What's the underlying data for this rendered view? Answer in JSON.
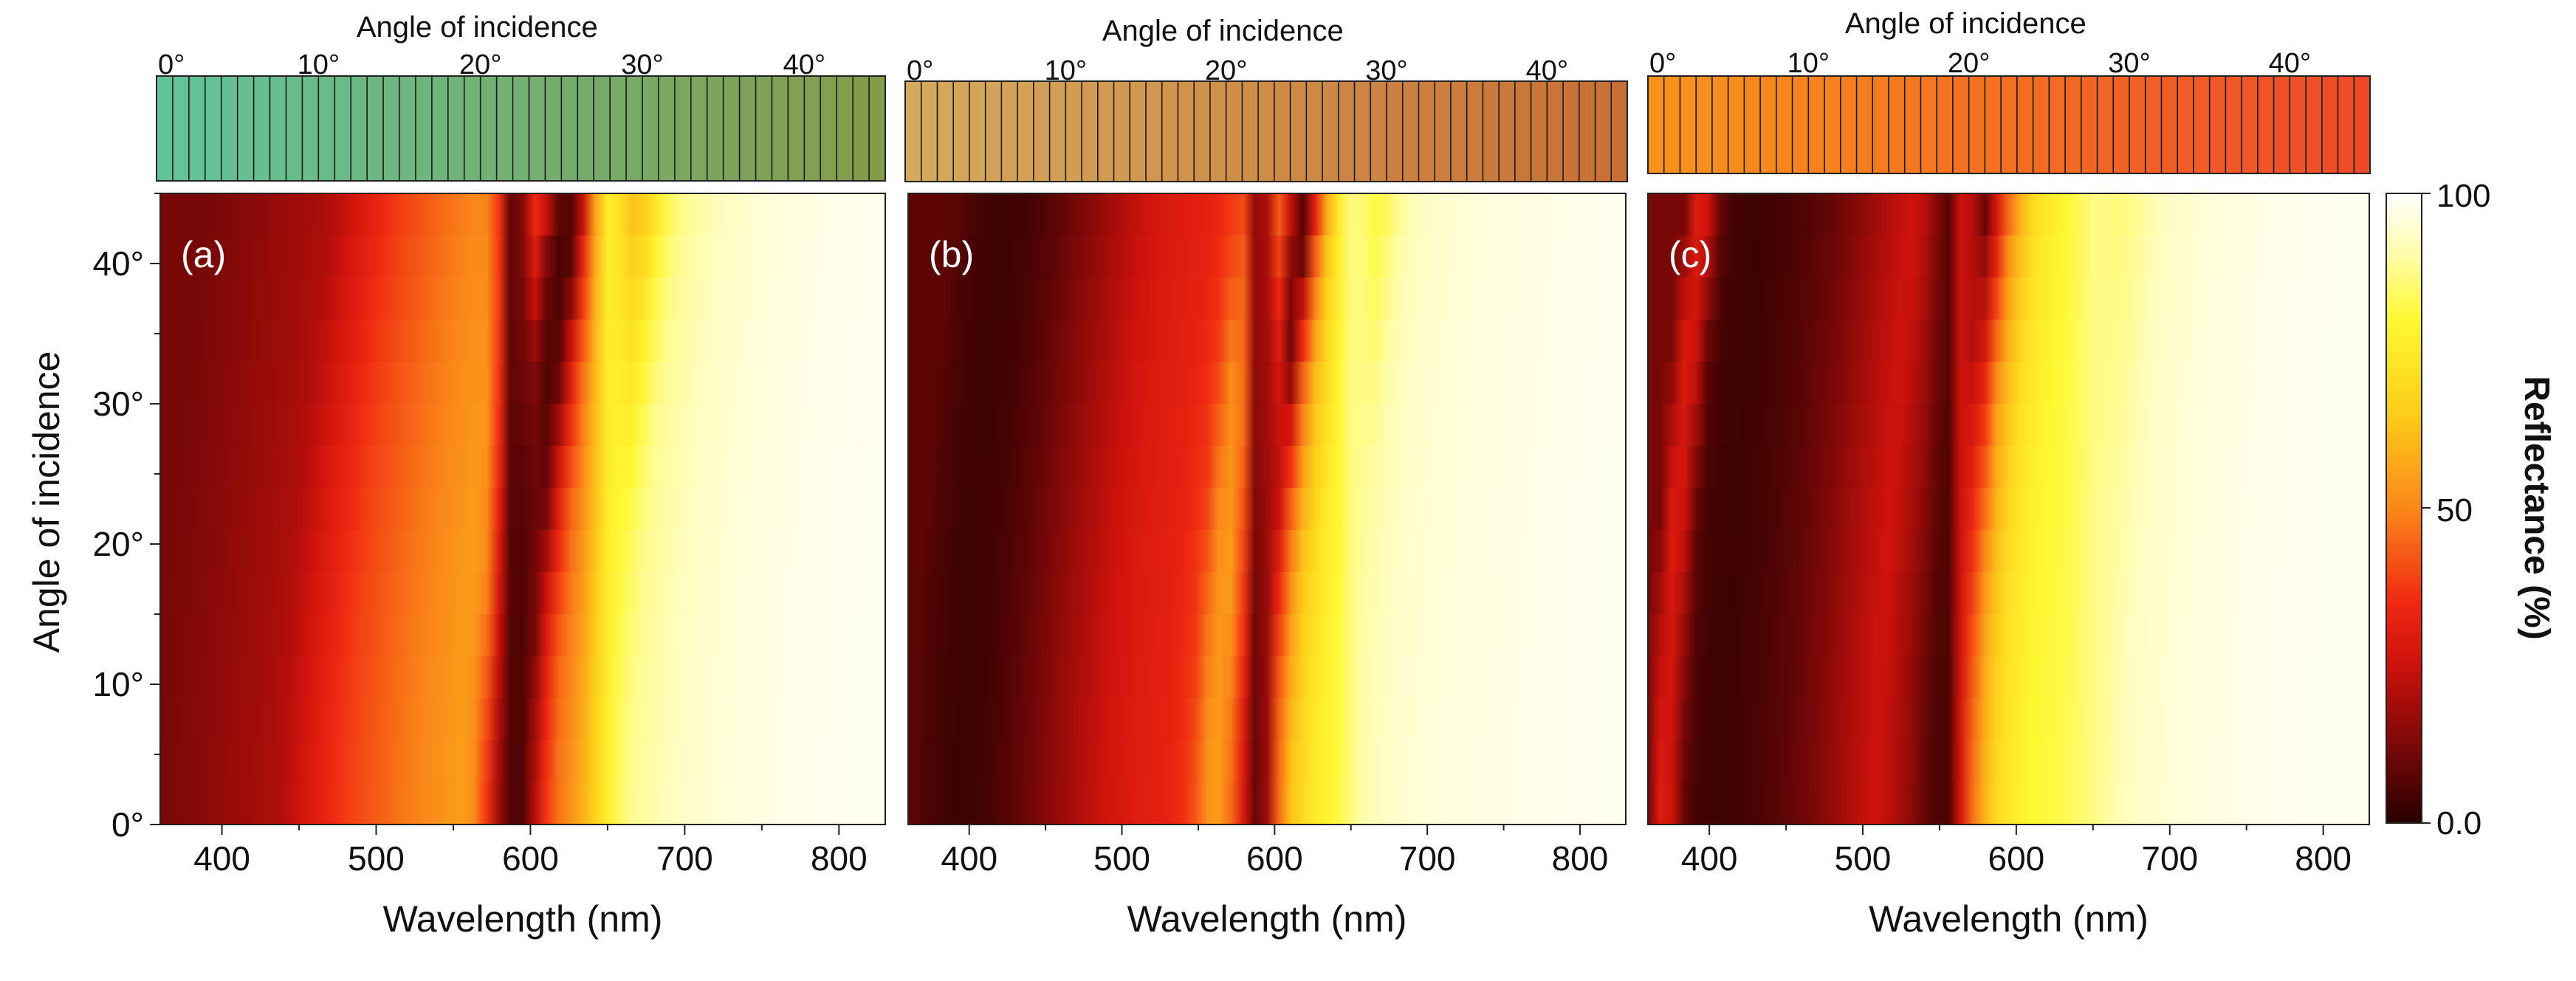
{
  "chart_data": [
    {
      "type": "heatmap",
      "panel_label": "(a)",
      "xlabel": "Wavelength (nm)",
      "ylabel": "Angle of incidence",
      "xlim": [
        360,
        830
      ],
      "ylim": [
        0,
        45
      ],
      "x_ticks": [
        "400",
        "500",
        "600",
        "700",
        "800"
      ],
      "y_ticks": [
        "0°",
        "10°",
        "20°",
        "30°",
        "40°"
      ],
      "profile": {
        "wavelength_nm": [
          360,
          380,
          400,
          420,
          440,
          460,
          480,
          500,
          520,
          540,
          555,
          565,
          575,
          582,
          590,
          598,
          605,
          615,
          630,
          645,
          655,
          665,
          690,
          720,
          760,
          800,
          830
        ],
        "reflectance_at_0deg": [
          12,
          14,
          16,
          18,
          21,
          30,
          38,
          43,
          48,
          52,
          55,
          50,
          30,
          10,
          4,
          8,
          28,
          45,
          55,
          70,
          82,
          88,
          92,
          95,
          97,
          98,
          98
        ],
        "redshift_at_45deg_nm": 35,
        "stationary_features_nm": [
          590,
          650
        ]
      },
      "swatch_bar": {
        "label": "Angle of incidence",
        "ticks": [
          "0°",
          "10°",
          "20°",
          "30°",
          "40°"
        ],
        "range_deg": [
          0,
          45
        ],
        "color_start": "#62c39a",
        "color_end": "#849b4a"
      }
    },
    {
      "type": "heatmap",
      "panel_label": "(b)",
      "xlabel": "Wavelength (nm)",
      "xlim": [
        360,
        830
      ],
      "ylim": [
        0,
        45
      ],
      "x_ticks": [
        "400",
        "500",
        "600",
        "700",
        "800"
      ],
      "profile": {
        "wavelength_nm": [
          360,
          375,
          390,
          410,
          430,
          450,
          470,
          490,
          510,
          530,
          545,
          555,
          565,
          575,
          585,
          592,
          600,
          610,
          625,
          640,
          655,
          680,
          720,
          760,
          800,
          830
        ],
        "reflectance_at_0deg": [
          8,
          5,
          3,
          4,
          8,
          14,
          20,
          26,
          30,
          32,
          38,
          52,
          55,
          40,
          12,
          4,
          40,
          62,
          75,
          80,
          90,
          94,
          96,
          97,
          98,
          98
        ],
        "redshift_at_45deg_nm": 30,
        "stationary_features_nm": [
          592,
          650
        ]
      },
      "swatch_bar": {
        "label": "Angle of incidence",
        "ticks": [
          "0°",
          "10°",
          "20°",
          "30°",
          "40°"
        ],
        "range_deg": [
          0,
          45
        ],
        "color_start": "#d5a95c",
        "color_end": "#c86f36"
      }
    },
    {
      "type": "heatmap",
      "panel_label": "(c)",
      "xlabel": "Wavelength (nm)",
      "xlim": [
        360,
        830
      ],
      "ylim": [
        0,
        45
      ],
      "x_ticks": [
        "400",
        "500",
        "600",
        "700",
        "800"
      ],
      "profile": {
        "wavelength_nm": [
          360,
          368,
          376,
          384,
          392,
          410,
          430,
          450,
          470,
          490,
          510,
          530,
          545,
          555,
          565,
          575,
          590,
          610,
          630,
          650,
          670,
          700,
          740,
          780,
          830
        ],
        "reflectance_at_0deg": [
          12,
          30,
          25,
          8,
          4,
          3,
          5,
          8,
          13,
          20,
          26,
          16,
          6,
          4,
          30,
          55,
          72,
          80,
          82,
          87,
          92,
          95,
          97,
          98,
          98
        ],
        "redshift_at_45deg_nm": 25,
        "stationary_features_nm": [
          560,
          650
        ]
      },
      "swatch_bar": {
        "label": "Angle of incidence",
        "ticks": [
          "0°",
          "10°",
          "20°",
          "30°",
          "40°"
        ],
        "range_deg": [
          0,
          45
        ],
        "color_start": "#f7931c",
        "color_end": "#ee4a2a"
      }
    }
  ],
  "colorbar": {
    "label": "Reflectance (%)",
    "ticks": [
      "100",
      "50",
      "0.0"
    ],
    "range": [
      0,
      100
    ],
    "colormap": "black-red-yellow-white"
  }
}
